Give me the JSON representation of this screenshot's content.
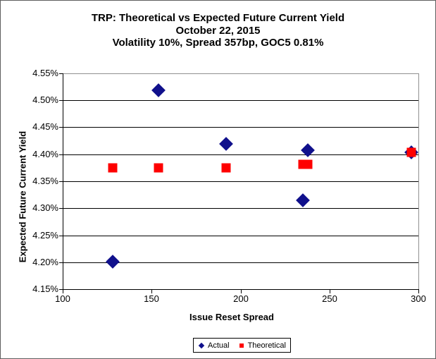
{
  "window": {
    "background": "#ffffff",
    "outer_border_color": "#5f5f5f"
  },
  "chart_data": {
    "type": "scatter",
    "title": "TRP: Theoretical vs Expected Future Current Yield",
    "subtitle_date": "October 22, 2015",
    "subtitle_params": "Volatility 10%, Spread 357bp, GOC5 0.81%",
    "xlabel": "Issue Reset Spread",
    "ylabel": "Expected Future Current Yield",
    "xlim": [
      100,
      300
    ],
    "ylim": [
      4.15,
      4.55
    ],
    "x_tick_values": [
      100,
      150,
      200,
      250,
      300
    ],
    "x_tick_labels": [
      "100",
      "150",
      "200",
      "250",
      "300"
    ],
    "y_tick_values": [
      4.55,
      4.5,
      4.45,
      4.4,
      4.35,
      4.3,
      4.25,
      4.2,
      4.15
    ],
    "y_tick_labels": [
      "4.55%",
      "4.50%",
      "4.45%",
      "4.40%",
      "4.35%",
      "4.30%",
      "4.25%",
      "4.20%",
      "4.15%"
    ],
    "grid": "horizontal-only",
    "gridline_color": "#000000",
    "plot_border_color": "#909090",
    "axis_color": "#000000",
    "legend_position": "bottom-center",
    "series": [
      {
        "name": "Actual",
        "marker": "diamond",
        "color": "#10108c",
        "points": [
          [
            128,
            4.201
          ],
          [
            154,
            4.519
          ],
          [
            192,
            4.42
          ],
          [
            235,
            4.315
          ],
          [
            238,
            4.407
          ],
          [
            296,
            4.404
          ]
        ]
      },
      {
        "name": "Theoretical",
        "marker": "square",
        "color": "#fe0000",
        "points": [
          [
            128,
            4.375
          ],
          [
            154,
            4.375
          ],
          [
            192,
            4.375
          ],
          [
            235,
            4.381
          ],
          [
            238,
            4.381
          ],
          [
            296,
            4.404
          ]
        ]
      }
    ]
  }
}
